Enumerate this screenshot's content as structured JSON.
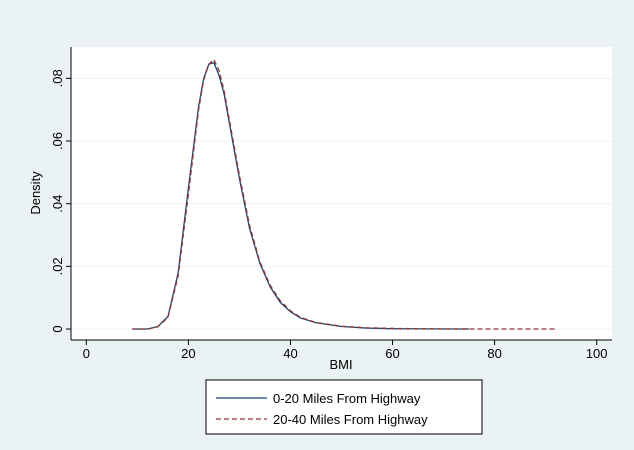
{
  "chart_data": {
    "type": "line",
    "title": "",
    "xlabel": "BMI",
    "ylabel": "Density",
    "xlim": [
      -3,
      103
    ],
    "ylim": [
      -0.0035,
      0.09
    ],
    "x_ticks": [
      0,
      20,
      40,
      60,
      80,
      100
    ],
    "x_tick_labels": [
      "0",
      "20",
      "40",
      "60",
      "80",
      "100"
    ],
    "y_ticks": [
      0,
      0.02,
      0.04,
      0.06,
      0.08
    ],
    "y_tick_labels": [
      "0",
      ".02",
      ".04",
      ".06",
      ".08"
    ],
    "grid": "horizontal",
    "legend_position": "bottom",
    "series": [
      {
        "name": "0-20 Miles From Highway",
        "color": "#1a476f",
        "style": "solid",
        "x": [
          9,
          12,
          14,
          16,
          18,
          20,
          22,
          23,
          24,
          25,
          26,
          27,
          28,
          30,
          32,
          34,
          36,
          38,
          40,
          42,
          45,
          50,
          55,
          60,
          65,
          70,
          75
        ],
        "y": [
          0,
          0,
          0.0008,
          0.004,
          0.018,
          0.045,
          0.071,
          0.08,
          0.0845,
          0.085,
          0.081,
          0.075,
          0.066,
          0.048,
          0.032,
          0.021,
          0.0135,
          0.0085,
          0.0055,
          0.0035,
          0.002,
          0.0008,
          0.0003,
          0.0001,
          5e-05,
          2e-05,
          0
        ]
      },
      {
        "name": "20-40 Miles From Highway",
        "color": "#90353b",
        "style": "dashed",
        "x": [
          9,
          12,
          14,
          16,
          18,
          20,
          22,
          23,
          24,
          25,
          26,
          27,
          28,
          30,
          32,
          34,
          36,
          38,
          40,
          42,
          45,
          50,
          55,
          60,
          65,
          70,
          75,
          80,
          85,
          92
        ],
        "y": [
          0,
          0,
          0.0007,
          0.0037,
          0.017,
          0.043,
          0.07,
          0.0795,
          0.0845,
          0.086,
          0.0825,
          0.076,
          0.067,
          0.049,
          0.033,
          0.0215,
          0.014,
          0.009,
          0.0058,
          0.0037,
          0.0021,
          0.0009,
          0.0004,
          0.0002,
          0.0001,
          5e-05,
          2e-05,
          1e-05,
          0,
          0
        ]
      }
    ]
  }
}
